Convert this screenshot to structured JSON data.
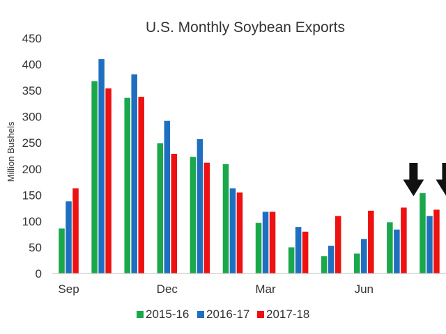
{
  "chart_data": {
    "type": "bar",
    "title": "U.S. Monthly Soybean Exports",
    "xlabel": "",
    "ylabel": "Million Bushels",
    "ylim": [
      0,
      450
    ],
    "yticks": [
      0,
      50,
      100,
      150,
      200,
      250,
      300,
      350,
      400,
      450
    ],
    "categories": [
      "Sep",
      "Oct",
      "Nov",
      "Dec",
      "Jan",
      "Feb",
      "Mar",
      "Apr",
      "May",
      "Jun",
      "Jul",
      "Aug"
    ],
    "shown_tick_labels": [
      "Sep",
      "Dec",
      "Mar",
      "Jun"
    ],
    "series": [
      {
        "name": "2015-16",
        "color": "#1aa84b",
        "values": [
          86,
          368,
          336,
          249,
          223,
          209,
          97,
          50,
          33,
          38,
          98,
          154
        ]
      },
      {
        "name": "2016-17",
        "color": "#1f6fc0",
        "values": [
          138,
          410,
          381,
          292,
          257,
          163,
          118,
          89,
          53,
          66,
          84,
          110
        ]
      },
      {
        "name": "2017-18",
        "color": "#ee1111",
        "values": [
          163,
          354,
          338,
          229,
          212,
          155,
          118,
          80,
          110,
          120,
          126,
          122
        ]
      }
    ],
    "annotations": [
      {
        "type": "arrow-down-icon",
        "category": "Jul"
      },
      {
        "type": "arrow-down-icon",
        "category": "Aug"
      }
    ],
    "grid": false,
    "legend": "bottom"
  }
}
